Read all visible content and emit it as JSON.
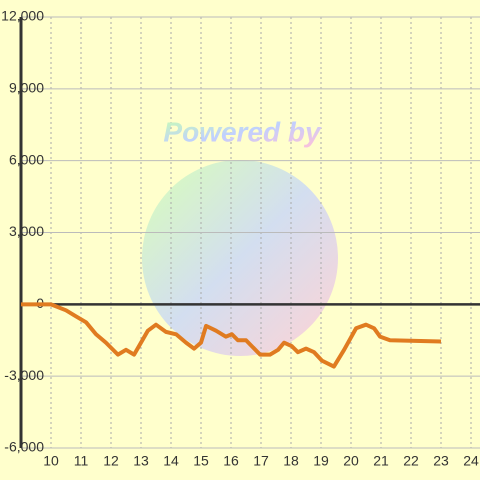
{
  "chart_data": {
    "type": "line",
    "annotation": "Powered by",
    "x": [
      9,
      9.5,
      10,
      10.5,
      10.83,
      11.17,
      11.5,
      11.83,
      12.23,
      12.5,
      12.77,
      13.23,
      13.5,
      13.83,
      14.17,
      14.5,
      14.77,
      15,
      15.17,
      15.5,
      15.83,
      16.03,
      16.23,
      16.5,
      16.97,
      17.3,
      17.57,
      17.77,
      18.03,
      18.23,
      18.5,
      18.77,
      19.03,
      19.43,
      19.77,
      20.17,
      20.5,
      20.77,
      20.97,
      21.3,
      23
    ],
    "series": [
      {
        "color": "#e07b20",
        "values": [
          0,
          0,
          0,
          -250,
          -500,
          -750,
          -1250,
          -1600,
          -2100,
          -1900,
          -2100,
          -1100,
          -850,
          -1150,
          -1250,
          -1600,
          -1850,
          -1600,
          -900,
          -1100,
          -1350,
          -1250,
          -1500,
          -1500,
          -2100,
          -2100,
          -1900,
          -1600,
          -1750,
          -2000,
          -1850,
          -2000,
          -2350,
          -2600,
          -1900,
          -1000,
          -850,
          -1000,
          -1350,
          -1500,
          -1550
        ]
      }
    ],
    "xlim": [
      9,
      24.3
    ],
    "xticks": [
      10,
      11,
      12,
      13,
      14,
      15,
      16,
      17,
      18,
      19,
      20,
      21,
      22,
      23,
      24
    ],
    "ylim": [
      -6000,
      12000
    ],
    "yticks": [
      {
        "value": -6000,
        "label": "-6,000"
      },
      {
        "value": -3000,
        "label": "-3,000"
      },
      0,
      {
        "value": 3000,
        "label": "3,000"
      },
      {
        "value": 6000,
        "label": "6,000"
      },
      {
        "value": 9000,
        "label": "9,000"
      },
      {
        "value": 12000,
        "label": "12,000"
      }
    ],
    "grid": true
  }
}
